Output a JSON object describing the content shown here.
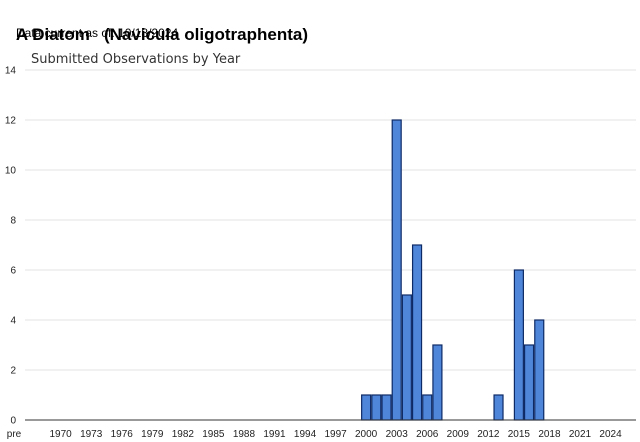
{
  "header": {
    "title": "A Diatom   (Navicula oligotraphenta)",
    "date_label": "Data current as of:",
    "date_value": "10/18/2024"
  },
  "chart_data": {
    "type": "bar",
    "title": "Submitted Observations by Year",
    "xlabel": "",
    "ylabel": "",
    "ylim": [
      0,
      14
    ],
    "yticks": [
      0,
      2,
      4,
      6,
      8,
      10,
      12,
      14
    ],
    "grid": true,
    "x_tick_labels": [
      "pre",
      "1970",
      "1973",
      "1976",
      "1979",
      "1982",
      "1985",
      "1988",
      "1991",
      "1994",
      "1997",
      "2000",
      "2003",
      "2006",
      "2009",
      "2012",
      "2015",
      "2018",
      "2021",
      "2024"
    ],
    "categories": [
      "2000",
      "2001",
      "2002",
      "2003",
      "2004",
      "2005",
      "2006",
      "2007",
      "2013",
      "2015",
      "2016",
      "2017"
    ],
    "values": [
      1,
      1,
      1,
      12,
      5,
      7,
      1,
      3,
      1,
      6,
      3,
      4
    ],
    "bar_color": "#4f86d9",
    "bar_edge_color": "#0e2a66"
  }
}
